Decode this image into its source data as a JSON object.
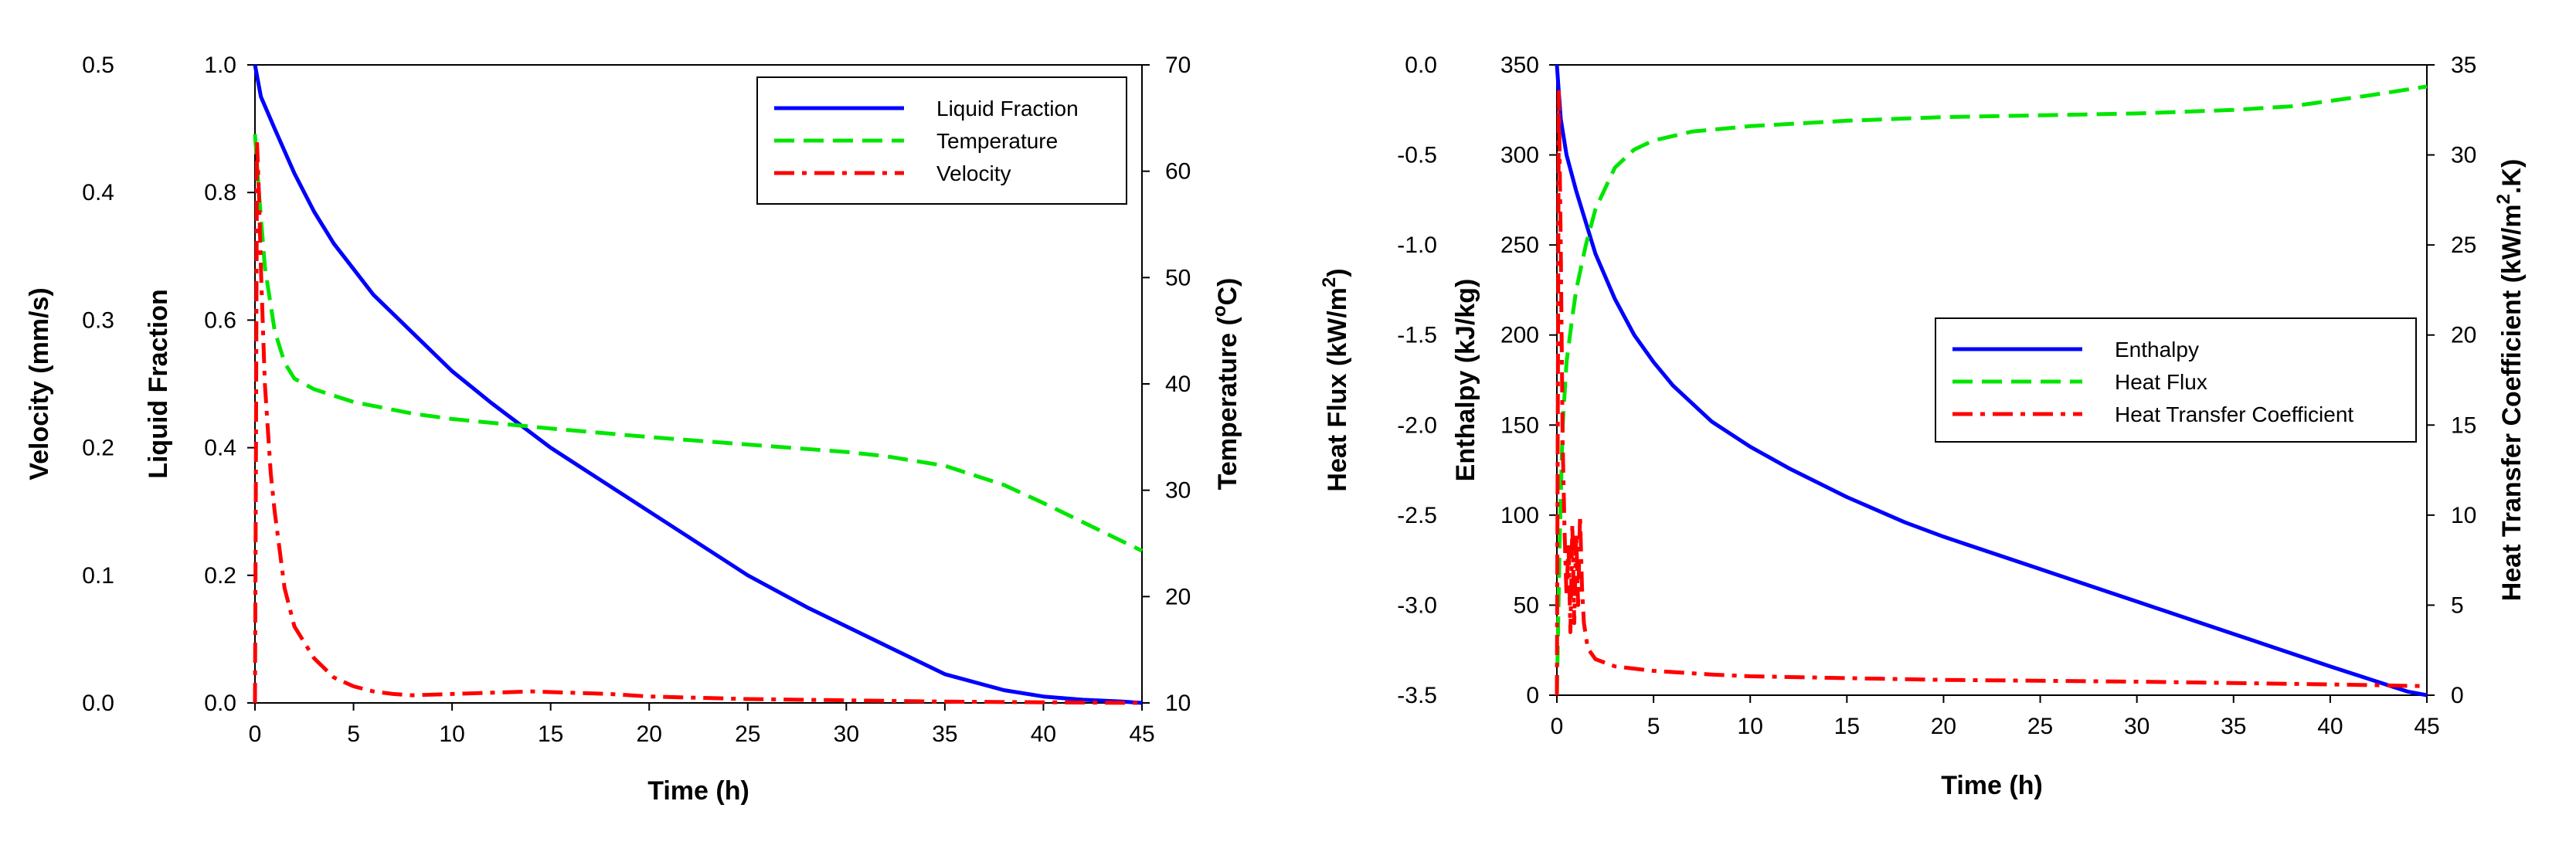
{
  "chart_data": [
    {
      "type": "line",
      "id": "left",
      "xlabel": "Time (h)",
      "xlim": [
        0,
        45
      ],
      "xticks": [
        0,
        5,
        10,
        15,
        20,
        25,
        30,
        35,
        40,
        45
      ],
      "axes": {
        "outer_left": {
          "label": "Velocity (mm/s)",
          "lim": [
            0,
            0.5
          ],
          "ticks": [
            "0.0",
            "0.1",
            "0.2",
            "0.3",
            "0.4",
            "0.5"
          ]
        },
        "inner_left": {
          "label": "Liquid Fraction",
          "lim": [
            0,
            1.0
          ],
          "ticks": [
            "0.0",
            "0.2",
            "0.4",
            "0.6",
            "0.8",
            "1.0"
          ]
        },
        "right": {
          "label": "Temperature (°C)",
          "label_base": "Temperature (",
          "label_sup": "o",
          "label_tail": "C)",
          "lim": [
            10,
            70
          ],
          "ticks": [
            "10",
            "20",
            "30",
            "40",
            "50",
            "60",
            "70"
          ]
        }
      },
      "legend": {
        "position": "top-right",
        "entries": [
          "Liquid Fraction",
          "Temperature",
          "Velocity"
        ]
      },
      "series": [
        {
          "name": "Liquid Fraction",
          "axis": "inner_left",
          "color": "#0000ff",
          "style": "solid",
          "x": [
            0,
            0.3,
            1,
            2,
            3,
            4,
            5,
            6,
            8,
            10,
            12,
            15,
            18,
            20,
            22,
            25,
            28,
            30,
            32,
            35,
            38,
            40,
            42,
            44,
            45
          ],
          "y": [
            1.0,
            0.95,
            0.9,
            0.83,
            0.77,
            0.72,
            0.68,
            0.64,
            0.58,
            0.52,
            0.47,
            0.4,
            0.34,
            0.3,
            0.26,
            0.2,
            0.15,
            0.12,
            0.09,
            0.045,
            0.02,
            0.01,
            0.005,
            0.002,
            0.0
          ]
        },
        {
          "name": "Temperature",
          "axis": "right",
          "color": "#00e600",
          "style": "dashed",
          "x": [
            0,
            0.2,
            0.5,
            1,
            1.5,
            2,
            3,
            5,
            8,
            10,
            15,
            20,
            25,
            30,
            32,
            35,
            38,
            40,
            42,
            45
          ],
          "y": [
            63.5,
            58,
            51,
            45,
            42,
            40.5,
            39.5,
            38.3,
            37.2,
            36.7,
            35.8,
            35,
            34.3,
            33.6,
            33.2,
            32.3,
            30.5,
            28.8,
            27,
            24.3
          ]
        },
        {
          "name": "Velocity",
          "axis": "outer_left",
          "color": "#ff0000",
          "style": "dashdot",
          "x": [
            0,
            0.05,
            0.1,
            0.2,
            0.3,
            0.5,
            0.8,
            1.0,
            1.5,
            2,
            3,
            4,
            5,
            6,
            7,
            8,
            10,
            12,
            14,
            16,
            18,
            20,
            25,
            30,
            35,
            40,
            45
          ],
          "y": [
            0,
            0.2,
            0.44,
            0.4,
            0.34,
            0.25,
            0.18,
            0.15,
            0.09,
            0.06,
            0.035,
            0.02,
            0.013,
            0.009,
            0.007,
            0.006,
            0.007,
            0.008,
            0.009,
            0.008,
            0.007,
            0.005,
            0.003,
            0.002,
            0.001,
            0.0005,
            0.0
          ]
        }
      ]
    },
    {
      "type": "line",
      "id": "right",
      "xlabel": "Time (h)",
      "xlim": [
        0,
        45
      ],
      "xticks": [
        0,
        5,
        10,
        15,
        20,
        25,
        30,
        35,
        40,
        45
      ],
      "axes": {
        "outer_left": {
          "label": "Heat Flux (kW/m²)",
          "label_base": "Heat Flux (kW/m",
          "label_sup": "2",
          "label_tail": ")",
          "lim": [
            -3.5,
            0
          ],
          "ticks": [
            "-3.5",
            "-3.0",
            "-2.5",
            "-2.0",
            "-1.5",
            "-1.0",
            "-0.5",
            "0.0"
          ]
        },
        "inner_left": {
          "label": "Enthalpy (kJ/kg)",
          "lim": [
            0,
            350
          ],
          "ticks": [
            "0",
            "50",
            "100",
            "150",
            "200",
            "250",
            "300",
            "350"
          ]
        },
        "right": {
          "label": "Heat Transfer Coefficient (kW/m².K)",
          "label_base": "Heat Transfer Coefficient (kW/m",
          "label_sup": "2",
          "label_tail": ".K)",
          "lim": [
            0,
            35
          ],
          "ticks": [
            "0",
            "5",
            "10",
            "15",
            "20",
            "25",
            "30",
            "35"
          ]
        }
      },
      "legend": {
        "position": "center-right",
        "entries": [
          "Enthalpy",
          "Heat Flux",
          "Heat Transfer Coefficient"
        ]
      },
      "series": [
        {
          "name": "Enthalpy",
          "axis": "inner_left",
          "color": "#0000ff",
          "style": "solid",
          "x": [
            0,
            0.2,
            0.5,
            1,
            2,
            3,
            4,
            5,
            6,
            8,
            10,
            12,
            15,
            18,
            20,
            25,
            30,
            35,
            40,
            44,
            45
          ],
          "y": [
            350,
            320,
            300,
            280,
            245,
            220,
            200,
            185,
            172,
            152,
            138,
            126,
            110,
            96,
            88,
            70,
            52,
            34,
            16,
            2,
            0
          ]
        },
        {
          "name": "Heat Flux",
          "axis": "outer_left",
          "color": "#00e600",
          "style": "dashed",
          "x": [
            0,
            0.15,
            0.3,
            0.5,
            0.8,
            1,
            1.5,
            2,
            3,
            4,
            5,
            7,
            10,
            15,
            20,
            25,
            30,
            35,
            38,
            40,
            42,
            45
          ],
          "y": [
            -3.5,
            -2.6,
            -2.0,
            -1.65,
            -1.4,
            -1.25,
            -1.0,
            -0.8,
            -0.57,
            -0.47,
            -0.42,
            -0.37,
            -0.34,
            -0.31,
            -0.29,
            -0.28,
            -0.27,
            -0.25,
            -0.23,
            -0.2,
            -0.17,
            -0.12
          ]
        },
        {
          "name": "Heat Transfer Coefficient",
          "axis": "right",
          "color": "#ff0000",
          "style": "dashdot",
          "x": [
            0,
            0.1,
            0.2,
            0.3,
            0.4,
            0.5,
            0.6,
            0.7,
            0.8,
            0.9,
            1.0,
            1.1,
            1.2,
            1.3,
            1.4,
            1.6,
            2.0,
            3,
            5,
            8,
            10,
            15,
            20,
            30,
            40,
            45
          ],
          "y": [
            0,
            33.5,
            25,
            14,
            9,
            5.5,
            8.5,
            3.5,
            9.5,
            4,
            9,
            5,
            10,
            6,
            4,
            2.6,
            2.0,
            1.6,
            1.35,
            1.15,
            1.05,
            0.95,
            0.85,
            0.75,
            0.6,
            0.5
          ]
        }
      ]
    }
  ]
}
